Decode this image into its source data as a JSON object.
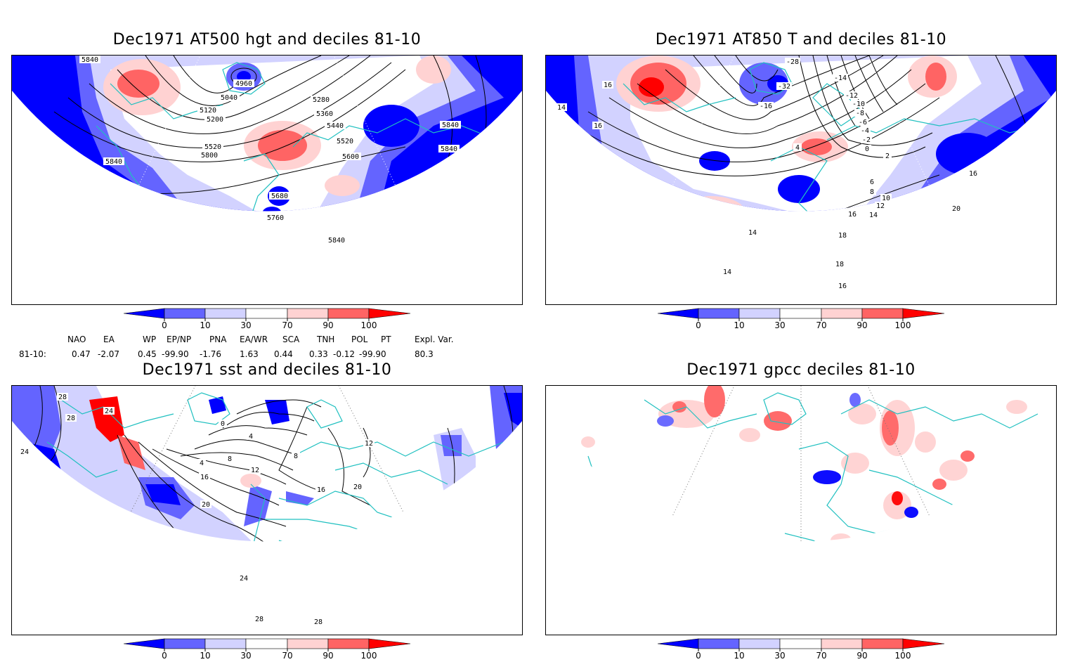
{
  "panels": [
    {
      "title": "Dec1971 AT500 hgt and deciles 81-10",
      "contour_labels": [
        "5840",
        "4960",
        "5040",
        "5120",
        "5200",
        "5280",
        "5360",
        "5440",
        "5520",
        "5600",
        "5520",
        "5800",
        "5840",
        "5840",
        "5840",
        "5680",
        "5760",
        "5840"
      ]
    },
    {
      "title": "Dec1971 AT850 T and deciles 81-10",
      "contour_labels": [
        "16",
        "14",
        "16",
        "-28",
        "-32",
        "-16",
        "-14",
        "-12",
        "-10",
        "-8",
        "-6",
        "-4",
        "-2",
        "0",
        "2",
        "4",
        "6",
        "8",
        "10",
        "12",
        "14",
        "16",
        "18",
        "20",
        "14",
        "16",
        "18",
        "16",
        "14"
      ]
    },
    {
      "title": "Dec1971 sst and deciles 81-10",
      "contour_labels": [
        "28",
        "28",
        "24",
        "24",
        "0",
        "4",
        "4",
        "8",
        "12",
        "16",
        "20",
        "24",
        "28",
        "28",
        "16",
        "20",
        "12",
        "8"
      ]
    },
    {
      "title": "Dec1971 gpcc deciles 81-10",
      "contour_labels": []
    }
  ],
  "colorbar": {
    "ticks": [
      "0",
      "10",
      "30",
      "70",
      "90",
      "100"
    ],
    "colors": [
      "#0000ff",
      "#6464ff",
      "#d2d2ff",
      "#ffffff",
      "#ffd2d2",
      "#ff6464",
      "#ff0000"
    ]
  },
  "indices": {
    "names": [
      "NAO",
      "EA",
      "WP",
      "EP/NP",
      "PNA",
      "EA/WR",
      "SCA",
      "TNH",
      "POL",
      "PT",
      "Expl. Var."
    ],
    "row_label": "81-10:",
    "values": [
      "0.47",
      "-2.07",
      "0.45",
      "-99.90",
      "-1.76",
      "1.63",
      "0.44",
      "0.33",
      "-0.12",
      "-99.90",
      "80.3"
    ]
  }
}
